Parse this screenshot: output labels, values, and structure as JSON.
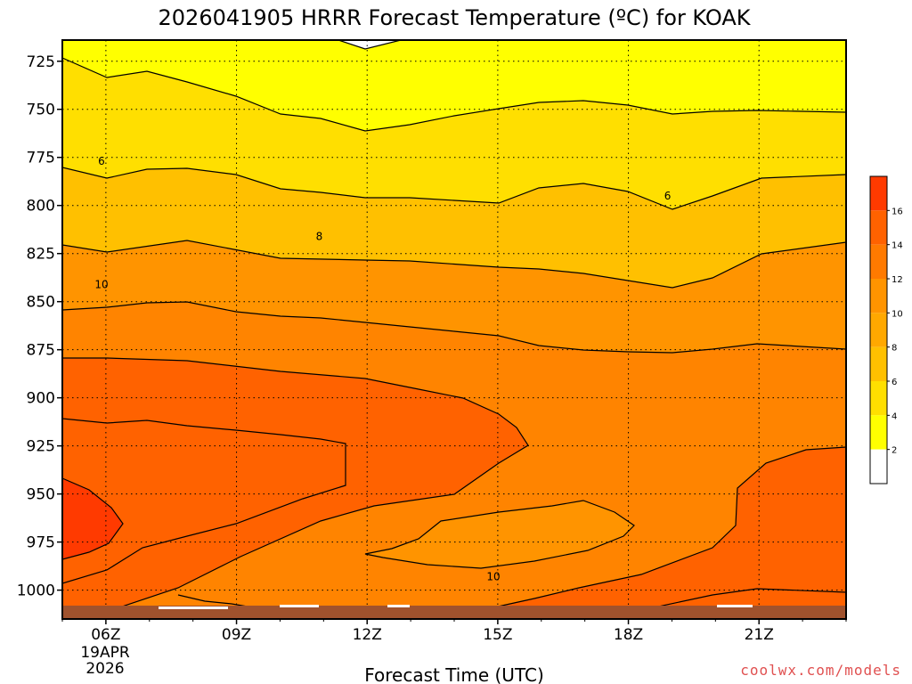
{
  "chart_data": {
    "type": "heatmap",
    "title": "2026041905 HRRR Forecast Temperature (ºC) for KOAK",
    "xlabel": "Forecast Time (UTC)",
    "ylabel": "",
    "x_ticks": [
      "06Z",
      "09Z",
      "12Z",
      "15Z",
      "18Z",
      "21Z"
    ],
    "x_date_label": [
      "19APR",
      "2026"
    ],
    "y_ticks": [
      725,
      750,
      775,
      800,
      825,
      850,
      875,
      900,
      925,
      950,
      975,
      1000
    ],
    "ylim": [
      1015,
      714
    ],
    "xlim_hours_utc": [
      5,
      23
    ],
    "grid": true,
    "colorbar": {
      "ticks": [
        2,
        4,
        6,
        8,
        10,
        12,
        14,
        16
      ],
      "colors": [
        "#ffffff",
        "#ffff00",
        "#ffdf00",
        "#ffc000",
        "#ffa800",
        "#ff9400",
        "#ff7a00",
        "#ff6200",
        "#ff3a00"
      ]
    },
    "contour_labels": [
      {
        "text": "6",
        "hour": 5.9,
        "pressure": 777
      },
      {
        "text": "6",
        "hour": 18.9,
        "pressure": 795
      },
      {
        "text": "8",
        "hour": 10.9,
        "pressure": 816
      },
      {
        "text": "10",
        "hour": 5.9,
        "pressure": 841
      },
      {
        "text": "10",
        "hour": 14.9,
        "pressure": 993
      }
    ],
    "ground_color": "#a0522d"
  },
  "credit": "coolwx.com/models"
}
